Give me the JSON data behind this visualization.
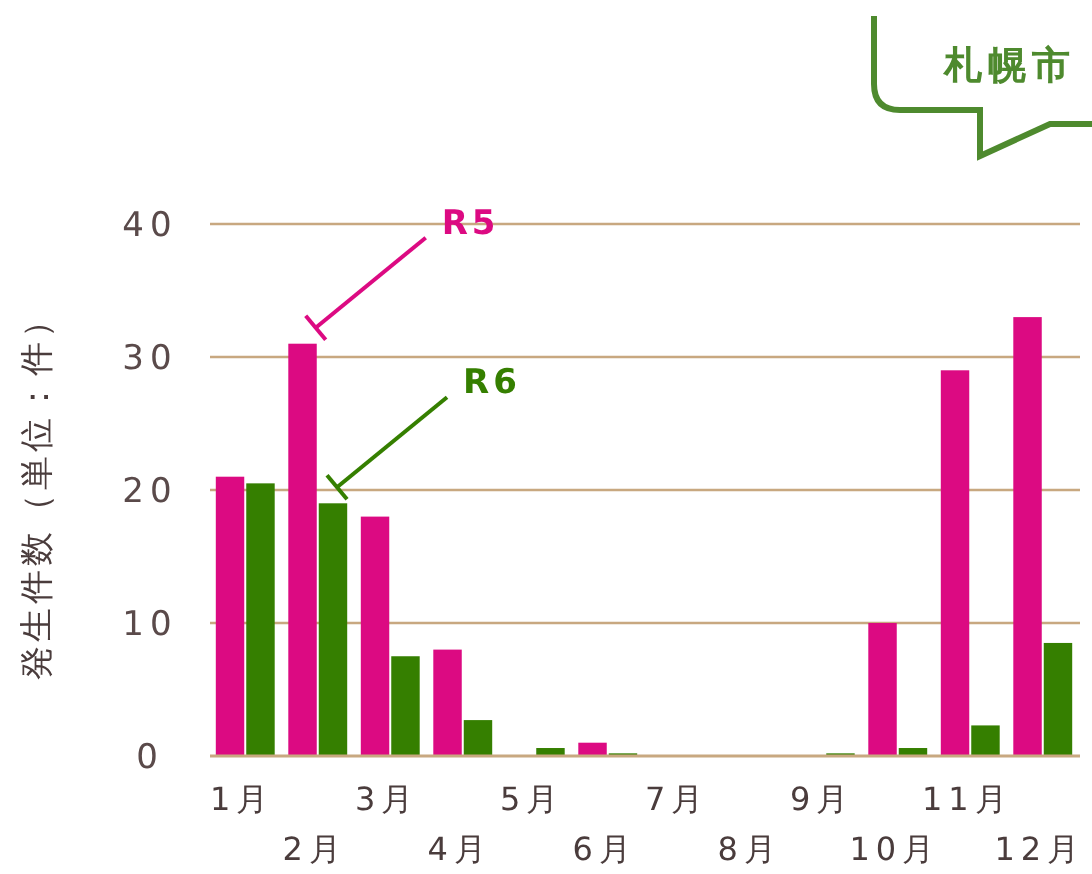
{
  "chart_data": {
    "type": "bar",
    "title": "札幌市",
    "ylabel": "発生件数（単位：件）",
    "categories": [
      "1月",
      "2月",
      "3月",
      "4月",
      "5月",
      "6月",
      "7月",
      "8月",
      "9月",
      "10月",
      "11月",
      "12月"
    ],
    "series": [
      {
        "name": "R5",
        "color": "#dc0a82",
        "values": [
          21,
          31,
          18,
          8,
          0,
          1,
          0,
          0,
          0,
          10,
          29,
          33
        ]
      },
      {
        "name": "R6",
        "color": "#357f00",
        "values": [
          20.5,
          19,
          7.5,
          2.7,
          0.6,
          0.2,
          0,
          0,
          0.2,
          0.6,
          2.3,
          8.5
        ]
      }
    ],
    "ylim": [
      0,
      40
    ],
    "yticks": [
      0,
      10,
      20,
      30,
      40
    ],
    "grid": "y"
  }
}
